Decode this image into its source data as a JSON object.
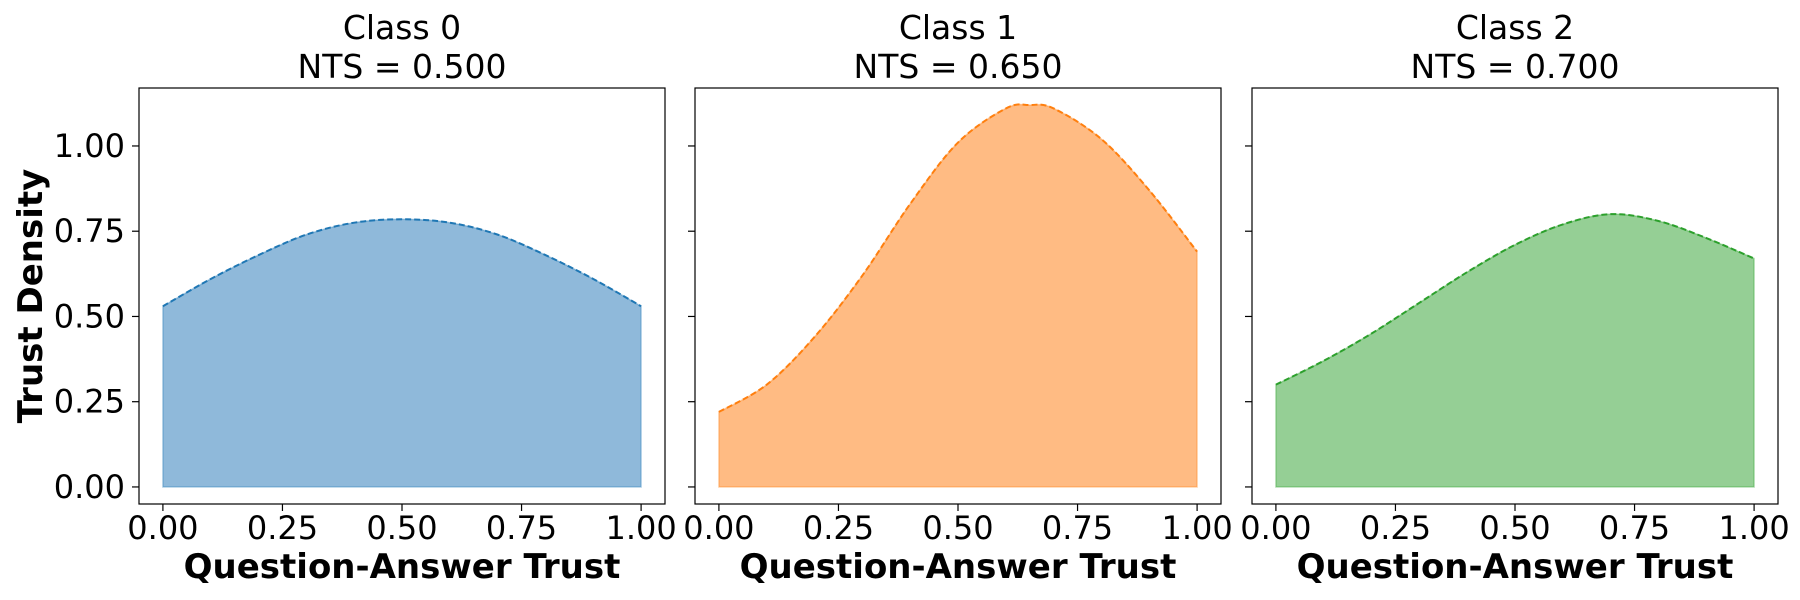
{
  "chart_data": {
    "type": "area",
    "shared_y_axis": true,
    "ylabel": "Trust Density",
    "ylim": [
      -0.05,
      1.17
    ],
    "yticks": [
      0.0,
      0.25,
      0.5,
      0.75,
      1.0
    ],
    "ytick_labels": [
      "0.00",
      "0.25",
      "0.50",
      "0.75",
      "1.00"
    ],
    "xlim": [
      -0.05,
      1.05
    ],
    "xticks": [
      0.0,
      0.25,
      0.5,
      0.75,
      1.0
    ],
    "xtick_labels": [
      "0.00",
      "0.25",
      "0.50",
      "0.75",
      "1.00"
    ],
    "grid": false,
    "panels": [
      {
        "title_line1": "Class 0",
        "title_line2": "NTS = 0.500",
        "xlabel": "Question-Answer Trust",
        "color": "#1f77b4",
        "fill_color": "#8fb9da",
        "x": [
          0.0,
          0.1,
          0.2,
          0.3,
          0.4,
          0.5,
          0.6,
          0.7,
          0.8,
          0.9,
          1.0
        ],
        "y": [
          0.53,
          0.61,
          0.68,
          0.74,
          0.775,
          0.785,
          0.775,
          0.74,
          0.68,
          0.61,
          0.53
        ]
      },
      {
        "title_line1": "Class 1",
        "title_line2": "NTS = 0.650",
        "xlabel": "Question-Answer Trust",
        "color": "#ff7f0e",
        "fill_color": "#ffbb83",
        "x": [
          0.0,
          0.1,
          0.2,
          0.3,
          0.4,
          0.5,
          0.6,
          0.65,
          0.7,
          0.8,
          0.9,
          1.0
        ],
        "y": [
          0.22,
          0.3,
          0.44,
          0.62,
          0.83,
          1.01,
          1.11,
          1.12,
          1.11,
          1.02,
          0.87,
          0.69
        ]
      },
      {
        "title_line1": "Class 2",
        "title_line2": "NTS = 0.700",
        "xlabel": "Question-Answer Trust",
        "color": "#2ca02c",
        "fill_color": "#95cf95",
        "x": [
          0.0,
          0.1,
          0.2,
          0.3,
          0.4,
          0.5,
          0.6,
          0.7,
          0.8,
          0.9,
          1.0
        ],
        "y": [
          0.3,
          0.37,
          0.45,
          0.54,
          0.63,
          0.71,
          0.77,
          0.8,
          0.78,
          0.73,
          0.67
        ]
      }
    ]
  }
}
